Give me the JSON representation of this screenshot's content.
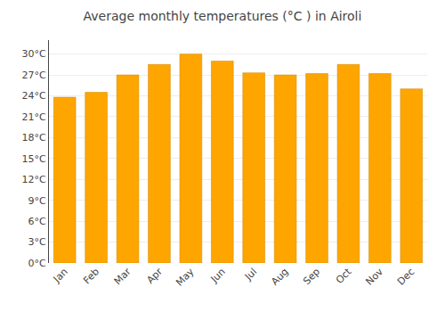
{
  "chart_data": {
    "type": "bar",
    "title": "Average monthly temperatures (°C ) in Airoli",
    "categories": [
      "Jan",
      "Feb",
      "Mar",
      "Apr",
      "May",
      "Jun",
      "Jul",
      "Aug",
      "Sep",
      "Oct",
      "Nov",
      "Dec"
    ],
    "values": [
      23.8,
      24.5,
      27.0,
      28.5,
      30.0,
      29.0,
      27.3,
      27.0,
      27.2,
      28.5,
      27.2,
      25.0
    ],
    "color": "#FFA500",
    "ylim": [
      0,
      32
    ],
    "yticks": [
      {
        "value": 0,
        "label": "0°C"
      },
      {
        "value": 3,
        "label": "3°C"
      },
      {
        "value": 6,
        "label": "6°C"
      },
      {
        "value": 9,
        "label": "9°C"
      },
      {
        "value": 12,
        "label": "12°C"
      },
      {
        "value": 15,
        "label": "15°C"
      },
      {
        "value": 18,
        "label": "18°C"
      },
      {
        "value": 21,
        "label": "21°C"
      },
      {
        "value": 24,
        "label": "24°C"
      },
      {
        "value": 27,
        "label": "27°C"
      },
      {
        "value": 30,
        "label": "30°C"
      }
    ],
    "grid": true
  }
}
